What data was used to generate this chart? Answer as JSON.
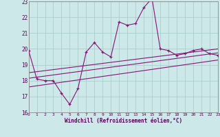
{
  "xlabel": "Windchill (Refroidissement éolien,°C)",
  "bg_color": "#cce8e8",
  "grid_color": "#aacfcf",
  "line_color": "#881177",
  "xlim": [
    0,
    23
  ],
  "ylim": [
    16,
    23
  ],
  "yticks": [
    16,
    17,
    18,
    19,
    20,
    21,
    22,
    23
  ],
  "xticks": [
    0,
    1,
    2,
    3,
    4,
    5,
    6,
    7,
    8,
    9,
    10,
    11,
    12,
    13,
    14,
    15,
    16,
    17,
    18,
    19,
    20,
    21,
    22,
    23
  ],
  "main_x": [
    0,
    1,
    2,
    3,
    4,
    5,
    6,
    7,
    8,
    9,
    10,
    11,
    12,
    13,
    14,
    15,
    16,
    17,
    18,
    19,
    20,
    21,
    22,
    23
  ],
  "main_y": [
    19.9,
    18.1,
    18.0,
    18.0,
    17.2,
    16.5,
    17.5,
    19.8,
    20.4,
    19.8,
    19.5,
    21.7,
    21.5,
    21.6,
    22.6,
    23.2,
    20.0,
    19.9,
    19.6,
    19.7,
    19.9,
    20.0,
    19.7,
    19.6
  ],
  "line1_x": [
    0,
    23
  ],
  "line1_y": [
    18.15,
    19.75
  ],
  "line2_x": [
    0,
    23
  ],
  "line2_y": [
    18.5,
    20.0
  ],
  "line3_x": [
    0,
    23
  ],
  "line3_y": [
    17.6,
    19.3
  ]
}
